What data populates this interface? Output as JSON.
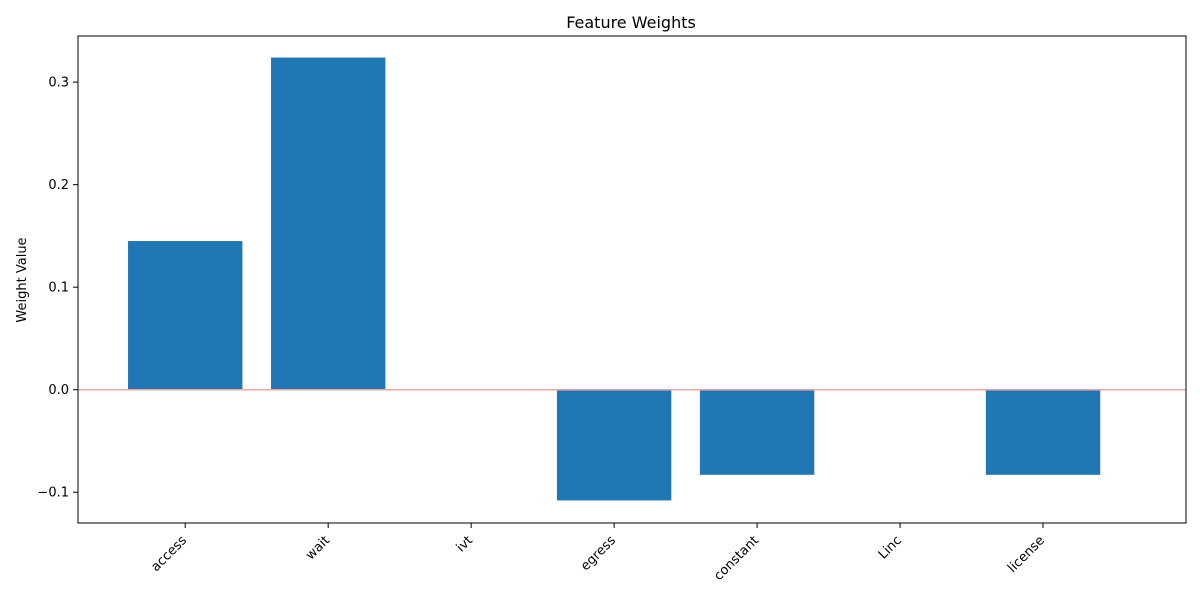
{
  "chart_data": {
    "type": "bar",
    "title": "Feature Weights",
    "xlabel": "",
    "ylabel": "Weight Value",
    "categories": [
      "access",
      "wait",
      "ivt",
      "egress",
      "constant",
      "Linc",
      "license"
    ],
    "values": [
      0.145,
      0.324,
      0.0,
      -0.108,
      -0.083,
      0.0,
      -0.083
    ],
    "ylim": [
      -0.13,
      0.345
    ],
    "yticks": [
      -0.1,
      0.0,
      0.1,
      0.2,
      0.3
    ],
    "ytick_labels": [
      "−0.1",
      "0.0",
      "0.1",
      "0.2",
      "0.3"
    ],
    "grid": false,
    "legend": "none",
    "bar_color": "#1f77b4",
    "zero_line_color": "#f4a6a6"
  }
}
